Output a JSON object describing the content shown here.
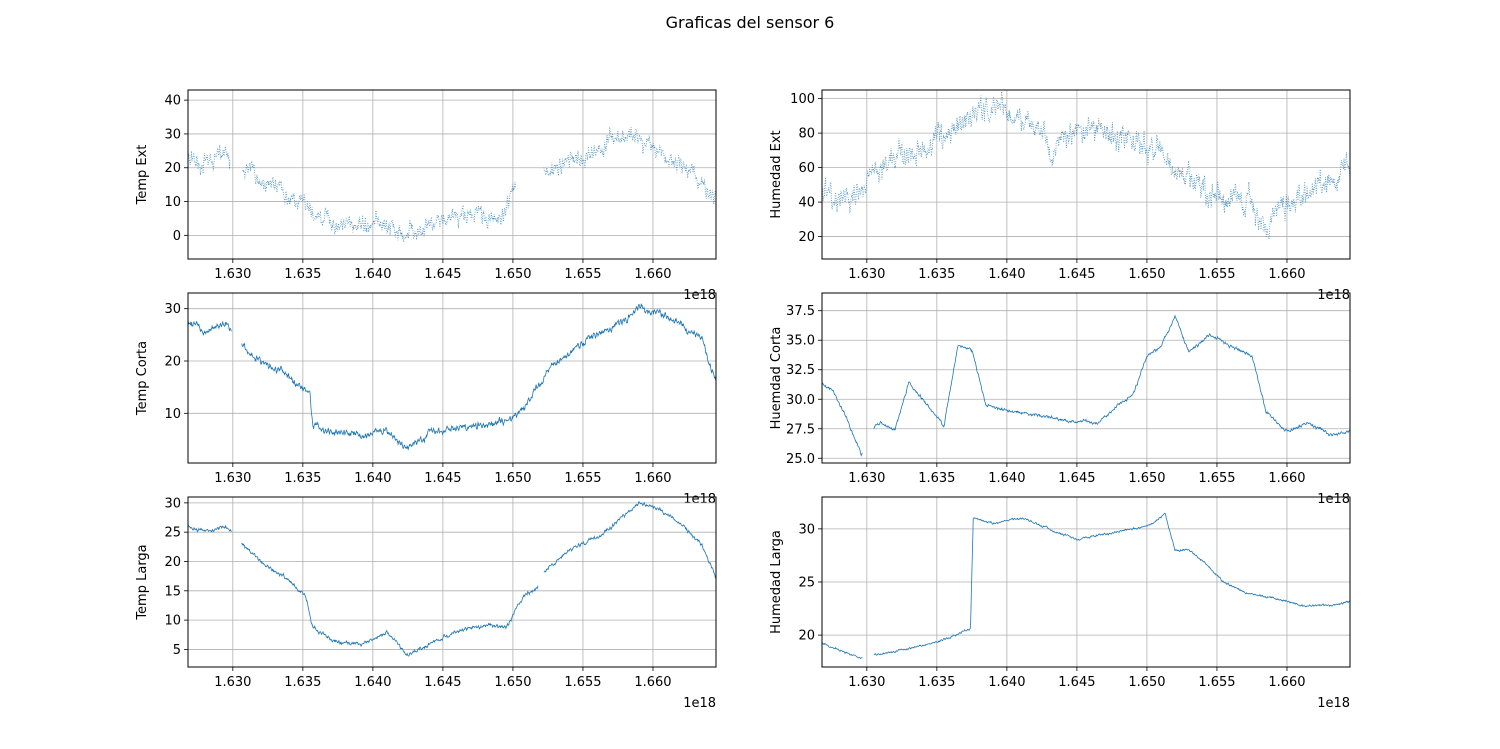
{
  "figure": {
    "title": "Graficas del sensor 6"
  },
  "chart_data": [
    {
      "type": "line",
      "ylabel": "Temp Ext",
      "x_offset_label": "1e18",
      "xlim": [
        1.6268,
        1.6645
      ],
      "ylim": [
        -7,
        43
      ],
      "xticks": [
        "1.630",
        "1.635",
        "1.640",
        "1.645",
        "1.650",
        "1.655",
        "1.660"
      ],
      "xtick_values": [
        1.63,
        1.635,
        1.64,
        1.645,
        1.65,
        1.655,
        1.66
      ],
      "yticks": [
        "0",
        "10",
        "20",
        "30",
        "40"
      ],
      "ytick_values": [
        0,
        10,
        20,
        30,
        40
      ],
      "grid": true,
      "style": "dotted",
      "color": "#1f77b4",
      "noise": 7,
      "gaps": [
        [
          1.6298,
          1.6307
        ],
        [
          1.6502,
          1.6522
        ]
      ],
      "series": [
        {
          "x": [
            1.6268,
            1.6285,
            1.6295,
            1.6305,
            1.632,
            1.634,
            1.6355,
            1.637,
            1.6385,
            1.64,
            1.6415,
            1.6425,
            1.644,
            1.6455,
            1.647,
            1.649,
            1.65,
            1.6525,
            1.654,
            1.6555,
            1.657,
            1.6585,
            1.66,
            1.6615,
            1.663,
            1.6645
          ],
          "y": [
            22,
            22,
            23,
            20,
            17,
            13,
            7,
            4,
            3,
            4,
            2,
            1,
            4,
            6,
            7,
            5,
            12,
            20,
            22,
            23,
            28,
            30,
            26,
            22,
            18,
            11
          ]
        }
      ]
    },
    {
      "type": "line",
      "ylabel": "Humedad Ext",
      "x_offset_label": "1e18",
      "xlim": [
        1.6268,
        1.6645
      ],
      "ylim": [
        7,
        105
      ],
      "xticks": [
        "1.630",
        "1.635",
        "1.640",
        "1.645",
        "1.650",
        "1.655",
        "1.660"
      ],
      "xtick_values": [
        1.63,
        1.635,
        1.64,
        1.645,
        1.65,
        1.655,
        1.66
      ],
      "yticks": [
        "20",
        "40",
        "60",
        "80",
        "100"
      ],
      "ytick_values": [
        20,
        40,
        60,
        80,
        100
      ],
      "grid": true,
      "style": "dotted",
      "color": "#1f77b4",
      "noise": 20,
      "gaps": [],
      "series": [
        {
          "x": [
            1.6268,
            1.6285,
            1.63,
            1.6315,
            1.633,
            1.6345,
            1.636,
            1.638,
            1.64,
            1.6415,
            1.643,
            1.6445,
            1.646,
            1.6475,
            1.649,
            1.6505,
            1.652,
            1.654,
            1.6555,
            1.657,
            1.6585,
            1.66,
            1.6615,
            1.663,
            1.6645
          ],
          "y": [
            45,
            40,
            50,
            60,
            70,
            72,
            85,
            92,
            92,
            85,
            70,
            78,
            82,
            80,
            78,
            70,
            58,
            45,
            42,
            40,
            30,
            38,
            45,
            55,
            60
          ]
        }
      ]
    },
    {
      "type": "line",
      "ylabel": "Temp Corta",
      "x_offset_label": "1e18",
      "xlim": [
        1.6268,
        1.6645
      ],
      "ylim": [
        0.5,
        33
      ],
      "xticks": [
        "1.630",
        "1.635",
        "1.640",
        "1.645",
        "1.650",
        "1.655",
        "1.660"
      ],
      "xtick_values": [
        1.63,
        1.635,
        1.64,
        1.645,
        1.65,
        1.655,
        1.66
      ],
      "yticks": [
        "10",
        "20",
        "30"
      ],
      "ytick_values": [
        10,
        20,
        30
      ],
      "grid": true,
      "style": "solid",
      "color": "#1f77b4",
      "noise": 1.8,
      "gaps": [
        [
          1.6299,
          1.6306
        ]
      ],
      "series": [
        {
          "x": [
            1.6268,
            1.628,
            1.6295,
            1.6306,
            1.632,
            1.634,
            1.6355,
            1.6357,
            1.6375,
            1.6395,
            1.641,
            1.6425,
            1.644,
            1.646,
            1.648,
            1.6495,
            1.651,
            1.6525,
            1.6545,
            1.656,
            1.6575,
            1.659,
            1.6605,
            1.662,
            1.6635,
            1.6645
          ],
          "y": [
            27,
            26,
            27,
            23,
            20,
            17,
            14,
            8,
            6,
            6,
            7,
            3,
            6,
            7,
            8,
            8,
            12,
            18,
            23,
            25,
            27,
            30,
            29,
            27,
            24,
            16
          ]
        }
      ]
    },
    {
      "type": "line",
      "ylabel": "Huemdad Corta",
      "x_offset_label": "1e18",
      "xlim": [
        1.6268,
        1.6645
      ],
      "ylim": [
        24.6,
        39
      ],
      "xticks": [
        "1.630",
        "1.635",
        "1.640",
        "1.645",
        "1.650",
        "1.655",
        "1.660"
      ],
      "xtick_values": [
        1.63,
        1.635,
        1.64,
        1.645,
        1.65,
        1.655,
        1.66
      ],
      "yticks": [
        "25.0",
        "27.5",
        "30.0",
        "32.5",
        "35.0",
        "37.5"
      ],
      "ytick_values": [
        25,
        27.5,
        30,
        32.5,
        35,
        37.5
      ],
      "grid": true,
      "style": "solid",
      "color": "#1f77b4",
      "noise": 0.35,
      "gaps": [
        [
          1.6297,
          1.6305
        ]
      ],
      "series": [
        {
          "x": [
            1.6268,
            1.6275,
            1.6285,
            1.6296,
            1.6306,
            1.631,
            1.632,
            1.633,
            1.634,
            1.6355,
            1.6365,
            1.6375,
            1.6385,
            1.64,
            1.642,
            1.644,
            1.6465,
            1.6475,
            1.649,
            1.65,
            1.651,
            1.652,
            1.653,
            1.6545,
            1.656,
            1.6575,
            1.6585,
            1.66,
            1.6615,
            1.663,
            1.6645
          ],
          "y": [
            31.2,
            30.8,
            28.5,
            25.3,
            27.8,
            28,
            27.3,
            31.4,
            30,
            27.7,
            34.5,
            34.2,
            29.5,
            29,
            28.7,
            28.2,
            28,
            29,
            30.5,
            33.5,
            34.5,
            37,
            34,
            35.5,
            34.5,
            33.7,
            29,
            27.2,
            28,
            27,
            27.2
          ]
        }
      ]
    },
    {
      "type": "line",
      "ylabel": "Temp Larga",
      "x_offset_label": "1e18",
      "xlim": [
        1.6268,
        1.6645
      ],
      "ylim": [
        2,
        31
      ],
      "xticks": [
        "1.630",
        "1.635",
        "1.640",
        "1.645",
        "1.650",
        "1.655",
        "1.660"
      ],
      "xtick_values": [
        1.63,
        1.635,
        1.64,
        1.645,
        1.65,
        1.655,
        1.66
      ],
      "yticks": [
        "5",
        "10",
        "15",
        "20",
        "25",
        "30"
      ],
      "ytick_values": [
        5,
        10,
        15,
        20,
        25,
        30
      ],
      "grid": true,
      "style": "solid",
      "color": "#1f77b4",
      "noise": 0.9,
      "gaps": [
        [
          1.6299,
          1.6306
        ],
        [
          1.6518,
          1.6522
        ]
      ],
      "series": [
        {
          "x": [
            1.6268,
            1.628,
            1.6295,
            1.6306,
            1.632,
            1.634,
            1.6352,
            1.6357,
            1.6375,
            1.6395,
            1.641,
            1.6425,
            1.644,
            1.646,
            1.648,
            1.6495,
            1.6508,
            1.6518,
            1.6522,
            1.654,
            1.656,
            1.6575,
            1.659,
            1.6605,
            1.662,
            1.6635,
            1.6645
          ],
          "y": [
            26,
            25,
            26,
            23,
            20,
            17,
            14,
            9,
            6,
            6,
            8,
            4,
            6,
            8,
            9,
            9,
            14,
            16,
            18,
            22,
            24,
            27,
            30,
            29,
            26,
            23,
            17
          ]
        }
      ]
    },
    {
      "type": "line",
      "ylabel": "Humedad Larga",
      "x_offset_label": "1e18",
      "xlim": [
        1.6268,
        1.6645
      ],
      "ylim": [
        17,
        33
      ],
      "xticks": [
        "1.630",
        "1.635",
        "1.640",
        "1.645",
        "1.650",
        "1.655",
        "1.660"
      ],
      "xtick_values": [
        1.63,
        1.635,
        1.64,
        1.645,
        1.65,
        1.655,
        1.66
      ],
      "yticks": [
        "20",
        "25",
        "30"
      ],
      "ytick_values": [
        20,
        25,
        30
      ],
      "grid": true,
      "style": "solid",
      "color": "#1f77b4",
      "noise": 0.25,
      "gaps": [
        [
          1.6297,
          1.6305
        ]
      ],
      "series": [
        {
          "x": [
            1.6268,
            1.628,
            1.6297,
            1.6305,
            1.632,
            1.634,
            1.6355,
            1.6374,
            1.6376,
            1.639,
            1.641,
            1.643,
            1.645,
            1.647,
            1.649,
            1.6505,
            1.6513,
            1.652,
            1.653,
            1.654,
            1.6555,
            1.657,
            1.659,
            1.661,
            1.663,
            1.6645
          ],
          "y": [
            19.2,
            18.6,
            17.8,
            18.1,
            18.5,
            19,
            19.6,
            20.6,
            31,
            30.5,
            31,
            30,
            29,
            29.5,
            30,
            30.5,
            31.5,
            28,
            28,
            27,
            25,
            24,
            23.5,
            22.8,
            22.8,
            23.2
          ]
        }
      ]
    }
  ]
}
